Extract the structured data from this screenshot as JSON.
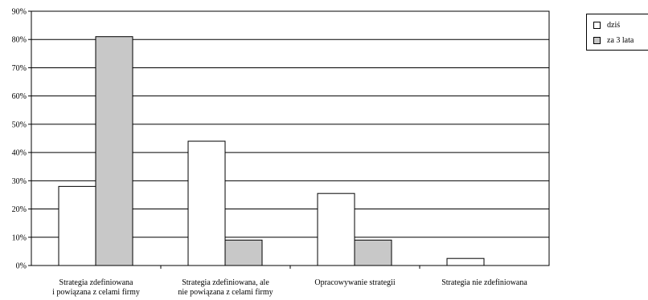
{
  "chart_data": {
    "type": "bar",
    "categories": [
      "Strategia zdefiniowana\ni powiązana z celami firmy",
      "Strategia zdefiniowana, ale\nnie powiązana z celami firmy",
      "Opracowywanie strategii",
      "Strategia nie zdefiniowana"
    ],
    "series": [
      {
        "name": "dziś",
        "color": "#ffffff",
        "values": [
          28,
          44,
          25.5,
          2.5
        ]
      },
      {
        "name": "za 3 lata",
        "color": "#c8c8c8",
        "values": [
          81,
          9,
          9,
          0
        ]
      }
    ],
    "ylim": [
      0,
      90
    ],
    "yticks": [
      "0%",
      "10%",
      "20%",
      "30%",
      "40%",
      "50%",
      "60%",
      "70%",
      "80%",
      "90%"
    ],
    "title": "",
    "xlabel": "",
    "ylabel": "",
    "grid": true,
    "legend_position": "top-right"
  }
}
